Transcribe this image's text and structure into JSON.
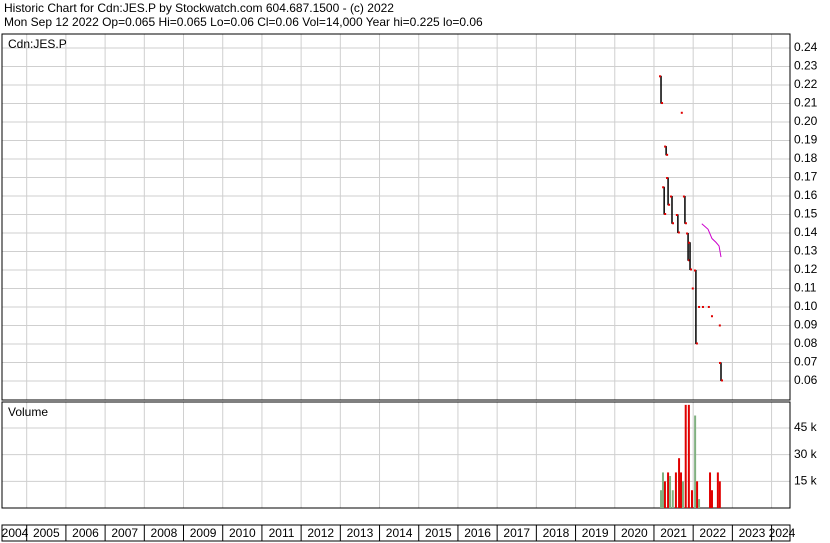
{
  "header": {
    "line1": "Historic Chart for Cdn:JES.P by Stockwatch.com 604.687.1500 - (c) 2022",
    "line2": "Mon Sep 12 2022  Op=0.065  Hi=0.065  Lo=0.06  Cl=0.06  Vol=14,000  Year hi=0.225  lo=0.06"
  },
  "chart_data": [
    {
      "type": "ohlc",
      "label": "Cdn:JES.P",
      "color": "#000000",
      "point_color": "#e00000",
      "grid": true,
      "x": [
        2021.18,
        2021.26,
        2021.31,
        2021.36,
        2021.46,
        2021.61,
        2021.71,
        2021.79,
        2021.87,
        2021.92,
        2021.99,
        2022.07,
        2022.15,
        2022.25,
        2022.4,
        2022.48,
        2022.68,
        2022.71
      ],
      "high": [
        0.225,
        0.165,
        0.187,
        0.17,
        0.16,
        0.15,
        0.205,
        0.16,
        0.14,
        0.135,
        0.11,
        0.12,
        0.1,
        0.1,
        0.1,
        0.095,
        0.09,
        0.07
      ],
      "low": [
        0.21,
        0.15,
        0.182,
        0.155,
        0.145,
        0.14,
        0.205,
        0.145,
        0.125,
        0.12,
        0.11,
        0.08,
        0.1,
        0.1,
        0.1,
        0.095,
        0.09,
        0.06
      ],
      "overlay": {
        "x": [
          2022.22,
          2022.38,
          2022.48,
          2022.58,
          2022.66,
          2022.71
        ],
        "values": [
          0.145,
          0.142,
          0.137,
          0.135,
          0.133,
          0.127
        ],
        "color": "#cc00cc"
      },
      "ylim": [
        0.0497,
        0.2476
      ],
      "yticks": [
        0.06,
        0.07,
        0.08,
        0.09,
        {
          "value": 0.1,
          "label": "0.10"
        },
        0.11,
        0.12,
        0.13,
        0.14,
        0.15,
        0.16,
        0.17,
        0.18,
        0.19,
        {
          "value": 0.2,
          "label": "0.20"
        },
        0.21,
        0.22,
        0.23,
        0.24
      ]
    },
    {
      "type": "bar",
      "label": "Volume",
      "grid": true,
      "x": [
        2021.18,
        2021.23,
        2021.28,
        2021.36,
        2021.41,
        2021.48,
        2021.56,
        2021.64,
        2021.69,
        2021.74,
        2021.81,
        2021.89,
        2021.97,
        2022.05,
        2022.1,
        2022.15,
        2022.43,
        2022.48,
        2022.63,
        2022.68
      ],
      "values": [
        10000,
        20000,
        15000,
        20000,
        18000,
        10000,
        20000,
        28000,
        20000,
        15000,
        58000,
        58000,
        10000,
        52000,
        15000,
        5000,
        20000,
        10000,
        20000,
        15000
      ],
      "colors": [
        "#80b080",
        "#80b080",
        "#e00000",
        "#e00000",
        "#80b080",
        "#80b080",
        "#e00000",
        "#e00000",
        "#e00000",
        "#80b080",
        "#e00000",
        "#e00000",
        "#e00000",
        "#80b080",
        "#e00000",
        "#80b080",
        "#e00000",
        "#e00000",
        "#e00000",
        "#e00000"
      ],
      "ylim": [
        0,
        59600
      ],
      "yticks": [
        {
          "value": 15000,
          "label": "15 k"
        },
        {
          "value": 30000,
          "label": "30 k"
        },
        {
          "value": 45000,
          "label": "45 k"
        }
      ],
      "xlim": [
        2004.37,
        2024.47
      ],
      "xticks": [
        {
          "value": 2004,
          "label": "2004"
        },
        2005,
        2006,
        2007,
        2008,
        2009,
        2010,
        2011,
        2012,
        2013,
        2014,
        2015,
        2016,
        2017,
        2018,
        2019,
        2020,
        2021,
        2022,
        2023,
        2024
      ]
    }
  ]
}
